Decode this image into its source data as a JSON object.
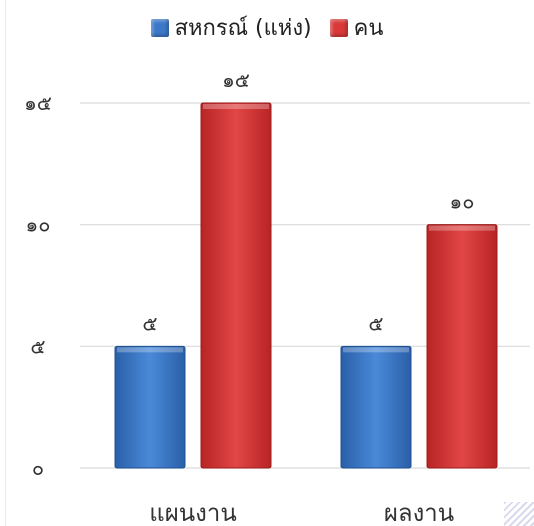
{
  "chart_data": {
    "type": "bar",
    "title": "",
    "xlabel": "",
    "ylabel": "",
    "categories": [
      "แผนงาน",
      "ผลงาน"
    ],
    "series": [
      {
        "name": "สหกรณ์ (แห่ง)",
        "color": "#3d78c8",
        "values": [
          5,
          5
        ],
        "labels": [
          "๕",
          "๕"
        ]
      },
      {
        "name": "คน",
        "color": "#d83a3a",
        "values": [
          15,
          10
        ],
        "labels": [
          "๑๕",
          "๑๐"
        ]
      }
    ],
    "ylim": [
      0,
      15
    ],
    "yticks": [
      0,
      5,
      10,
      15
    ],
    "ytick_labels": [
      "๐",
      "๕",
      "๑๐",
      "๑๕"
    ],
    "grid": true,
    "legend_position": "top"
  }
}
